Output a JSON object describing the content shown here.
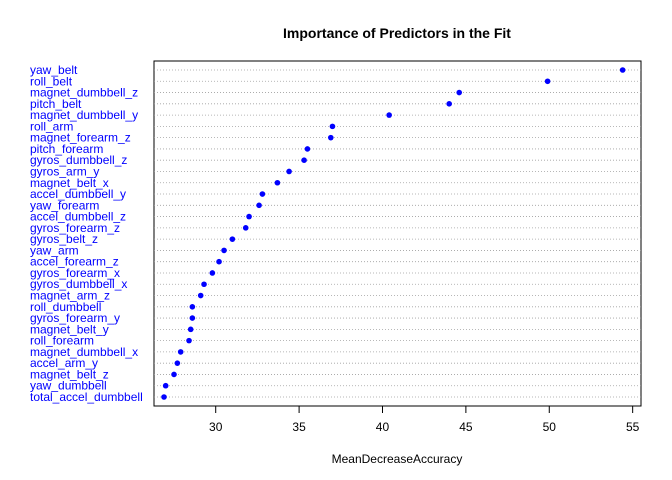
{
  "chart_data": {
    "type": "scatter",
    "title": "Importance of Predictors in the Fit",
    "xlabel": "MeanDecreaseAccuracy",
    "ylabel": "",
    "xlim": [
      26.3,
      55.5
    ],
    "xticks": [
      30,
      35,
      40,
      45,
      50,
      55
    ],
    "grid": "dotted horizontal lines per category",
    "label_color": "#0000ff",
    "point_color": "#0000ff",
    "categories": [
      "yaw_belt",
      "roll_belt",
      "magnet_dumbbell_z",
      "pitch_belt",
      "magnet_dumbbell_y",
      "roll_arm",
      "magnet_forearm_z",
      "pitch_forearm",
      "gyros_dumbbell_z",
      "gyros_arm_y",
      "magnet_belt_x",
      "accel_dumbbell_y",
      "yaw_forearm",
      "accel_dumbbell_z",
      "gyros_forearm_z",
      "gyros_belt_z",
      "yaw_arm",
      "accel_forearm_z",
      "gyros_forearm_x",
      "gyros_dumbbell_x",
      "magnet_arm_z",
      "roll_dumbbell",
      "gyros_forearm_y",
      "magnet_belt_y",
      "roll_forearm",
      "magnet_dumbbell_x",
      "accel_arm_y",
      "magnet_belt_z",
      "yaw_dumbbell",
      "total_accel_dumbbell"
    ],
    "values": [
      54.4,
      49.9,
      44.6,
      44.0,
      40.4,
      37.0,
      36.9,
      35.5,
      35.3,
      34.4,
      33.7,
      32.8,
      32.6,
      32.0,
      31.8,
      31.0,
      30.5,
      30.2,
      29.8,
      29.3,
      29.1,
      28.6,
      28.6,
      28.5,
      28.4,
      27.9,
      27.7,
      27.5,
      27.0,
      26.9
    ]
  }
}
